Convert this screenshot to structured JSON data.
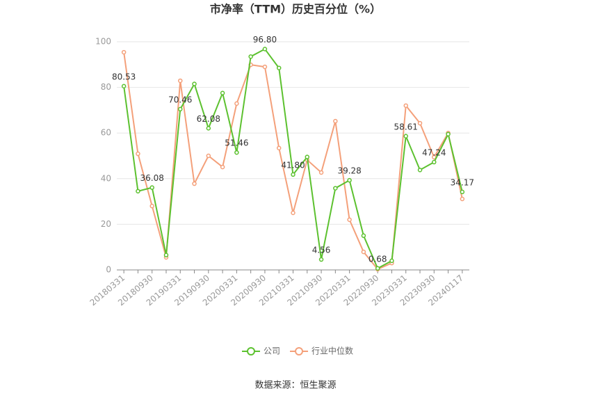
{
  "chart_data": {
    "type": "line",
    "title": "市净率（TTM）历史百分位（%）",
    "source": "数据来源：恒生聚源",
    "categories": [
      "20180331",
      null,
      "20180930",
      null,
      "20190331",
      null,
      "20190930",
      null,
      "20200331",
      null,
      "20200930",
      null,
      "20210331",
      null,
      "20210930",
      null,
      "20220331",
      null,
      "20220930",
      null,
      "20230331",
      null,
      "20230930",
      null,
      "20240117"
    ],
    "series": [
      {
        "name": "公司",
        "color": "#5cc12f",
        "values": [
          80.53,
          34.5,
          36.08,
          6.5,
          70.46,
          81.5,
          62.08,
          77.5,
          51.46,
          93.5,
          96.8,
          88.5,
          41.8,
          49.5,
          4.56,
          35.8,
          39.28,
          15,
          0.68,
          4,
          58.61,
          43.8,
          47.24,
          59.5,
          34.17
        ],
        "value_labels": [
          "80.53",
          null,
          "36.08",
          null,
          "70.46",
          null,
          "62.08",
          null,
          "51.46",
          null,
          "96.80",
          null,
          "41.80",
          null,
          "4.56",
          null,
          "39.28",
          null,
          "0.68",
          null,
          "58.61",
          null,
          "47.24",
          null,
          "34.17"
        ]
      },
      {
        "name": "行业中位数",
        "color": "#f4a07a",
        "values": [
          95.4,
          50.9,
          28,
          5.5,
          82.9,
          37.8,
          50,
          45.1,
          72.9,
          89.9,
          89,
          53.4,
          25,
          48.2,
          42.7,
          65.2,
          22,
          7.9,
          0.3,
          3,
          72,
          64.3,
          49.4,
          60,
          31.1
        ]
      }
    ],
    "ylim": [
      0,
      100
    ],
    "yticks": [
      0,
      20,
      40,
      60,
      80,
      100
    ],
    "grid": true
  }
}
